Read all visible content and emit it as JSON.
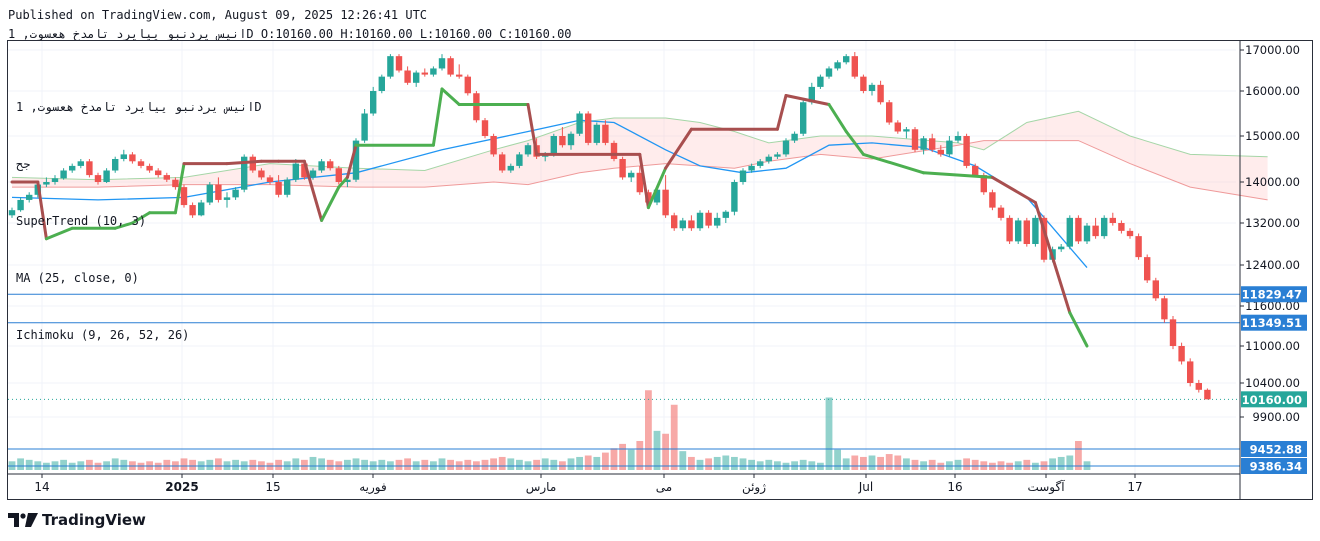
{
  "header": {
    "published": "Published on TradingView.com, August 09, 2025 12:26:41 UTC",
    "symbol_line": "انیس یردنبو ییایرد تامدخ هعسوت, 1D O:10160.00 H:10160.00 L:10160.00 C:10160.00"
  },
  "legend": {
    "symbol": "انیس یردنبو ییایرد تامدخ هعسوت, 1D",
    "suffix": "جح",
    "supertrend": "SuperTrend (10, 3)",
    "ma": "MA (25, close, 0)",
    "ichimoku": "Ichimoku (9, 26, 52, 26)"
  },
  "brand": "TradingView",
  "colors": {
    "up": "#26a69a",
    "down": "#ef5350",
    "supertrend_up": "#4caf50",
    "supertrend_down": "#a84f4f",
    "ma": "#2196f3",
    "level_line": "#2a7fd4",
    "price_label": "#2a7fd4",
    "last_price_label": "#26a69a"
  },
  "chart_data": {
    "type": "candlestick",
    "y_ticks": [
      "17000.00",
      "16000.00",
      "15000.00",
      "14000.00",
      "13200.00",
      "12400.00",
      "11600.00",
      "11000.00",
      "10400.00",
      "9900.00"
    ],
    "x_labels": [
      "14",
      "2025",
      "15",
      "فوریه",
      "مارس",
      "می",
      "ژوئن",
      "Jul",
      "16",
      "آگوست",
      "17"
    ],
    "levels": [
      {
        "value": 11829.47,
        "label": "11829.47"
      },
      {
        "value": 11349.51,
        "label": "11349.51"
      },
      {
        "value": 9452.88,
        "label": "9452.88"
      },
      {
        "value": 9386.34,
        "label": "9386.34"
      }
    ],
    "last_price": {
      "value": 10160.0,
      "label": "10160.00"
    },
    "ohlc": [
      [
        13350,
        13500,
        13300,
        13450
      ],
      [
        13450,
        13700,
        13420,
        13650
      ],
      [
        13650,
        13800,
        13600,
        13750
      ],
      [
        13750,
        14000,
        13700,
        13950
      ],
      [
        13950,
        14100,
        13900,
        14000
      ],
      [
        14000,
        14150,
        13950,
        14080
      ],
      [
        14080,
        14300,
        14050,
        14250
      ],
      [
        14250,
        14400,
        14200,
        14350
      ],
      [
        14350,
        14500,
        14300,
        14450
      ],
      [
        14450,
        14500,
        14100,
        14150
      ],
      [
        14150,
        14200,
        13950,
        14000
      ],
      [
        14000,
        14300,
        13980,
        14250
      ],
      [
        14250,
        14550,
        14200,
        14500
      ],
      [
        14500,
        14700,
        14450,
        14600
      ],
      [
        14600,
        14650,
        14400,
        14450
      ],
      [
        14450,
        14500,
        14300,
        14350
      ],
      [
        14350,
        14400,
        14200,
        14250
      ],
      [
        14250,
        14300,
        14100,
        14150
      ],
      [
        14150,
        14200,
        14000,
        14050
      ],
      [
        14050,
        14100,
        13850,
        13900
      ],
      [
        13900,
        13950,
        13500,
        13550
      ],
      [
        13550,
        13600,
        13300,
        13350
      ],
      [
        13350,
        13650,
        13330,
        13600
      ],
      [
        13600,
        14000,
        13550,
        13950
      ],
      [
        13950,
        14100,
        13600,
        13650
      ],
      [
        13650,
        13800,
        13500,
        13700
      ],
      [
        13700,
        13900,
        13650,
        13850
      ],
      [
        13850,
        14600,
        13800,
        14550
      ],
      [
        14550,
        14600,
        14200,
        14250
      ],
      [
        14250,
        14300,
        14050,
        14100
      ],
      [
        14100,
        14150,
        13950,
        14000
      ],
      [
        14000,
        14150,
        13700,
        13750
      ],
      [
        13750,
        14100,
        13700,
        14050
      ],
      [
        14050,
        14500,
        14000,
        14400
      ],
      [
        14400,
        14450,
        14050,
        14100
      ],
      [
        14100,
        14300,
        14050,
        14250
      ],
      [
        14250,
        14500,
        14200,
        14450
      ],
      [
        14450,
        14500,
        14250,
        14300
      ],
      [
        14300,
        14350,
        13950,
        14000
      ],
      [
        14000,
        14100,
        13900,
        14050
      ],
      [
        14050,
        14950,
        14000,
        14900
      ],
      [
        14900,
        15600,
        14850,
        15500
      ],
      [
        15500,
        16100,
        15450,
        16000
      ],
      [
        16000,
        16400,
        15950,
        16350
      ],
      [
        16350,
        16900,
        16300,
        16850
      ],
      [
        16850,
        16900,
        16450,
        16500
      ],
      [
        16500,
        16600,
        16150,
        16200
      ],
      [
        16200,
        16500,
        16100,
        16450
      ],
      [
        16450,
        16550,
        16350,
        16400
      ],
      [
        16400,
        16600,
        16350,
        16550
      ],
      [
        16550,
        16900,
        16500,
        16800
      ],
      [
        16800,
        16850,
        16350,
        16400
      ],
      [
        16400,
        16650,
        16300,
        16350
      ],
      [
        16350,
        16400,
        15900,
        15950
      ],
      [
        15950,
        16000,
        15300,
        15350
      ],
      [
        15350,
        15400,
        14950,
        15000
      ],
      [
        15000,
        15050,
        14550,
        14600
      ],
      [
        14600,
        14650,
        14200,
        14250
      ],
      [
        14250,
        14400,
        14200,
        14350
      ],
      [
        14350,
        14650,
        14300,
        14600
      ],
      [
        14600,
        14850,
        14550,
        14800
      ],
      [
        14800,
        14950,
        14500,
        14550
      ],
      [
        14550,
        14650,
        14450,
        14600
      ],
      [
        14600,
        15050,
        14550,
        15000
      ],
      [
        15000,
        15200,
        14750,
        14800
      ],
      [
        14800,
        15100,
        14700,
        15050
      ],
      [
        15050,
        15550,
        15000,
        15500
      ],
      [
        15500,
        15550,
        14800,
        14850
      ],
      [
        14850,
        15300,
        14800,
        15250
      ],
      [
        15250,
        15350,
        14800,
        14850
      ],
      [
        14850,
        14900,
        14450,
        14500
      ],
      [
        14500,
        14550,
        14050,
        14100
      ],
      [
        14100,
        14250,
        14000,
        14200
      ],
      [
        14200,
        14350,
        13750,
        13800
      ],
      [
        13800,
        13850,
        13550,
        13600
      ],
      [
        13600,
        13900,
        13550,
        13850
      ],
      [
        13850,
        14150,
        13300,
        13350
      ],
      [
        13350,
        13400,
        13050,
        13100
      ],
      [
        13100,
        13300,
        13050,
        13250
      ],
      [
        13250,
        13350,
        13050,
        13100
      ],
      [
        13100,
        13450,
        13050,
        13400
      ],
      [
        13400,
        13450,
        13100,
        13150
      ],
      [
        13150,
        13400,
        13100,
        13300
      ],
      [
        13300,
        13450,
        13200,
        13420
      ],
      [
        13420,
        14050,
        13350,
        14000
      ],
      [
        14000,
        14300,
        13950,
        14250
      ],
      [
        14250,
        14400,
        14200,
        14350
      ],
      [
        14350,
        14500,
        14300,
        14450
      ],
      [
        14450,
        14600,
        14400,
        14550
      ],
      [
        14550,
        14650,
        14500,
        14600
      ],
      [
        14600,
        14950,
        14550,
        14900
      ],
      [
        14900,
        15100,
        14850,
        15050
      ],
      [
        15050,
        15800,
        15000,
        15750
      ],
      [
        15750,
        16200,
        15700,
        16100
      ],
      [
        16100,
        16400,
        16050,
        16350
      ],
      [
        16350,
        16600,
        16300,
        16550
      ],
      [
        16550,
        16750,
        16500,
        16700
      ],
      [
        16700,
        16900,
        16650,
        16850
      ],
      [
        16850,
        16950,
        16300,
        16350
      ],
      [
        16350,
        16400,
        15950,
        16000
      ],
      [
        16000,
        16200,
        15900,
        16150
      ],
      [
        16150,
        16250,
        15700,
        15750
      ],
      [
        15750,
        15800,
        15250,
        15300
      ],
      [
        15300,
        15350,
        15050,
        15100
      ],
      [
        15100,
        15200,
        14950,
        15150
      ],
      [
        15150,
        15200,
        14650,
        14700
      ],
      [
        14700,
        15000,
        14600,
        14950
      ],
      [
        14950,
        15050,
        14650,
        14700
      ],
      [
        14700,
        14800,
        14550,
        14600
      ],
      [
        14600,
        15000,
        14550,
        14900
      ],
      [
        14900,
        15100,
        14850,
        15000
      ],
      [
        15000,
        15050,
        14300,
        14350
      ],
      [
        14350,
        14400,
        14100,
        14150
      ],
      [
        14150,
        14200,
        13750,
        13800
      ],
      [
        13800,
        13850,
        13450,
        13500
      ],
      [
        13500,
        13550,
        13250,
        13300
      ],
      [
        13300,
        13350,
        12800,
        12850
      ],
      [
        12850,
        13300,
        12800,
        13250
      ],
      [
        13250,
        13300,
        12750,
        12800
      ],
      [
        12800,
        13350,
        12750,
        13300
      ],
      [
        13300,
        13350,
        12450,
        12500
      ],
      [
        12500,
        12750,
        12450,
        12700
      ],
      [
        12700,
        12800,
        12650,
        12750
      ],
      [
        12750,
        13350,
        12700,
        13300
      ],
      [
        13300,
        13350,
        12800,
        12850
      ],
      [
        12850,
        13200,
        12800,
        13150
      ],
      [
        13150,
        13300,
        12900,
        12950
      ],
      [
        12950,
        13350,
        12900,
        13300
      ],
      [
        13300,
        13400,
        13150,
        13200
      ],
      [
        13200,
        13250,
        13000,
        13050
      ],
      [
        13050,
        13100,
        12900,
        12950
      ],
      [
        12950,
        13000,
        12500,
        12550
      ],
      [
        12550,
        12600,
        12050,
        12100
      ],
      [
        12100,
        12150,
        11700,
        11750
      ],
      [
        11750,
        11800,
        11350,
        11400
      ],
      [
        11400,
        11450,
        10950,
        11000
      ],
      [
        11000,
        11050,
        10700,
        10750
      ],
      [
        10750,
        10800,
        10350,
        10400
      ],
      [
        10400,
        10450,
        10260,
        10300
      ],
      [
        10300,
        10320,
        10160,
        10160
      ]
    ],
    "supertrend": [
      [
        0,
        14000
      ],
      [
        3,
        14000
      ],
      [
        4,
        12900
      ],
      [
        7,
        13100
      ],
      [
        12,
        13100
      ],
      [
        14,
        13200
      ],
      [
        16,
        13400
      ],
      [
        19,
        13400
      ],
      [
        20,
        14400
      ],
      [
        25,
        14400
      ],
      [
        29,
        14450
      ],
      [
        31,
        14450
      ],
      [
        34,
        14450
      ],
      [
        36,
        13250
      ],
      [
        38,
        13900
      ],
      [
        39,
        14100
      ],
      [
        40,
        14800
      ],
      [
        49,
        14800
      ],
      [
        50,
        16050
      ],
      [
        52,
        15700
      ],
      [
        60,
        15700
      ],
      [
        61,
        14600
      ],
      [
        73,
        14600
      ],
      [
        74,
        13500
      ],
      [
        76,
        14300
      ],
      [
        79,
        15150
      ],
      [
        89,
        15150
      ],
      [
        90,
        15900
      ],
      [
        95,
        15700
      ],
      [
        97,
        15100
      ],
      [
        99,
        14600
      ],
      [
        106,
        14200
      ],
      [
        114,
        14100
      ],
      [
        119,
        13600
      ],
      [
        123,
        11500
      ],
      [
        125,
        11000
      ]
    ],
    "ma": [
      [
        0,
        13700
      ],
      [
        10,
        13650
      ],
      [
        20,
        13700
      ],
      [
        30,
        14000
      ],
      [
        40,
        14200
      ],
      [
        50,
        14700
      ],
      [
        60,
        15100
      ],
      [
        66,
        15350
      ],
      [
        70,
        15300
      ],
      [
        76,
        14700
      ],
      [
        80,
        14350
      ],
      [
        85,
        14200
      ],
      [
        90,
        14300
      ],
      [
        95,
        14800
      ],
      [
        100,
        14850
      ],
      [
        106,
        14750
      ],
      [
        112,
        14350
      ],
      [
        118,
        13700
      ],
      [
        125,
        12350
      ]
    ],
    "ichimoku_cloud": {
      "upper": [
        [
          0,
          14100
        ],
        [
          10,
          14050
        ],
        [
          20,
          14100
        ],
        [
          30,
          14400
        ],
        [
          40,
          14300
        ],
        [
          48,
          14250
        ],
        [
          56,
          14700
        ],
        [
          60,
          14900
        ],
        [
          66,
          15300
        ],
        [
          70,
          15400
        ],
        [
          76,
          15400
        ],
        [
          80,
          15300
        ],
        [
          84,
          15100
        ],
        [
          88,
          14850
        ],
        [
          94,
          15000
        ],
        [
          100,
          15000
        ],
        [
          110,
          14850
        ],
        [
          113,
          14700
        ],
        [
          118,
          15300
        ],
        [
          124,
          15550
        ],
        [
          130,
          15000
        ],
        [
          137,
          14600
        ],
        [
          146,
          14550
        ]
      ],
      "lower": [
        [
          0,
          13900
        ],
        [
          10,
          13900
        ],
        [
          20,
          13950
        ],
        [
          30,
          13950
        ],
        [
          40,
          13900
        ],
        [
          48,
          13900
        ],
        [
          56,
          14000
        ],
        [
          60,
          13950
        ],
        [
          66,
          14200
        ],
        [
          70,
          14300
        ],
        [
          76,
          14400
        ],
        [
          80,
          14350
        ],
        [
          84,
          14300
        ],
        [
          88,
          14450
        ],
        [
          94,
          14600
        ],
        [
          100,
          14500
        ],
        [
          110,
          14800
        ],
        [
          113,
          14900
        ],
        [
          118,
          14900
        ],
        [
          124,
          14900
        ],
        [
          130,
          14400
        ],
        [
          137,
          13900
        ],
        [
          146,
          13650
        ]
      ]
    },
    "volume": [
      0.06,
      0.08,
      0.07,
      0.06,
      0.05,
      0.06,
      0.07,
      0.05,
      0.06,
      0.07,
      0.05,
      0.06,
      0.08,
      0.07,
      0.06,
      0.05,
      0.06,
      0.05,
      0.07,
      0.06,
      0.08,
      0.07,
      0.06,
      0.07,
      0.08,
      0.06,
      0.07,
      0.06,
      0.07,
      0.06,
      0.05,
      0.07,
      0.06,
      0.08,
      0.07,
      0.09,
      0.08,
      0.07,
      0.06,
      0.07,
      0.08,
      0.07,
      0.06,
      0.07,
      0.06,
      0.07,
      0.08,
      0.06,
      0.07,
      0.06,
      0.08,
      0.07,
      0.06,
      0.07,
      0.06,
      0.07,
      0.08,
      0.09,
      0.08,
      0.07,
      0.06,
      0.07,
      0.08,
      0.07,
      0.06,
      0.08,
      0.09,
      0.1,
      0.09,
      0.12,
      0.15,
      0.18,
      0.14,
      0.2,
      0.55,
      0.27,
      0.25,
      0.45,
      0.13,
      0.09,
      0.07,
      0.08,
      0.09,
      0.1,
      0.09,
      0.08,
      0.07,
      0.06,
      0.07,
      0.06,
      0.05,
      0.06,
      0.07,
      0.06,
      0.05,
      0.5,
      0.14,
      0.08,
      0.1,
      0.09,
      0.1,
      0.09,
      0.11,
      0.1,
      0.08,
      0.07,
      0.06,
      0.07,
      0.05,
      0.06,
      0.07,
      0.08,
      0.07,
      0.06,
      0.05,
      0.06,
      0.05,
      0.06,
      0.07,
      0.05,
      0.06,
      0.08,
      0.09,
      0.1,
      0.2,
      0.06
    ]
  }
}
